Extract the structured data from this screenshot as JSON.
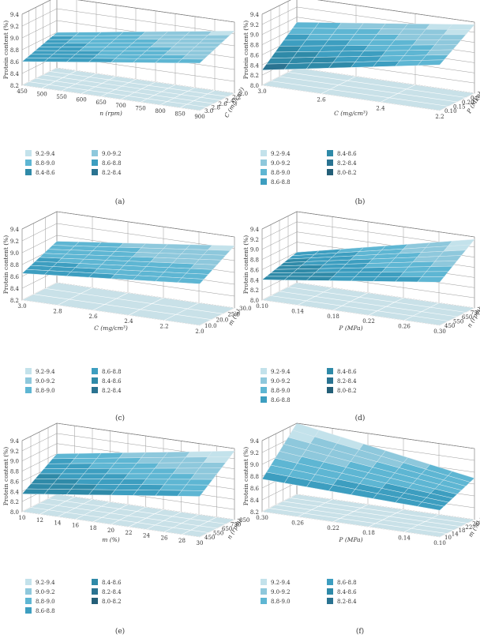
{
  "figure": {
    "colors": {
      "9.2-9.4": "#c3e2eb",
      "9.0-9.2": "#8ec8dc",
      "8.8-9.0": "#5eb6d3",
      "8.6-8.8": "#3d9ec0",
      "8.4-8.6": "#2f8aa8",
      "8.2-8.4": "#2a7391",
      "8.0-8.2": "#245f78"
    },
    "floor_color": "#c9e1e8",
    "wall_color": "#ffffff",
    "grid_color": "#9a9a9a"
  },
  "chart_data": [
    {
      "id": "a",
      "caption": "(a)",
      "type": "surface3d",
      "zlabel": "Protein content (%)",
      "zlim": [
        8.2,
        9.4
      ],
      "zticks": [
        "8.2",
        "8.4",
        "8.6",
        "8.8",
        "9.0",
        "9.2",
        "9.4"
      ],
      "xlabel": "n (rpm)",
      "xticks": [
        "450",
        "500",
        "550",
        "600",
        "650",
        "700",
        "750",
        "800",
        "850",
        "900"
      ],
      "xlim": [
        450,
        900
      ],
      "ylabel": "C (mg/cm³)",
      "yticks": [
        "3.0",
        "2.8",
        "2.6",
        "2.4",
        "2.2",
        "2.0"
      ],
      "ylim": [
        3.0,
        2.0
      ],
      "surface": {
        "z_front_left": 8.6,
        "z_front_right": 9.0,
        "z_back_left": 8.8,
        "z_back_right": 9.25
      },
      "legend": [
        "9.2-9.4",
        "9.0-9.2",
        "8.8-9.0",
        "8.6-8.8",
        "8.4-8.6",
        "8.2-8.4"
      ]
    },
    {
      "id": "b",
      "caption": "(b)",
      "type": "surface3d",
      "zlabel": "Protein content (%)",
      "zlim": [
        8.0,
        9.4
      ],
      "zticks": [
        "8.0",
        "8.2",
        "8.4",
        "8.6",
        "8.8",
        "9.0",
        "9.2",
        "9.4"
      ],
      "xlabel": "C (mg/cm³)",
      "xticks": [
        "3.0",
        "2.6",
        "2.4",
        "2.2"
      ],
      "xlim": [
        3.0,
        2.0
      ],
      "ylabel": "P (MPa)",
      "yticks": [
        "0.10",
        "0.15",
        "0.20",
        "0.25",
        "0.30"
      ],
      "ylim": [
        0.1,
        0.3
      ],
      "surface": {
        "z_front_left": 8.3,
        "z_front_right": 8.9,
        "z_back_left": 8.9,
        "z_back_right": 9.35
      },
      "legend": [
        "9.2-9.4",
        "8.4-8.6",
        "9.0-9.2",
        "8.2-8.4",
        "8.8-9.0",
        "8.0-8.2",
        "8.6-8.8"
      ]
    },
    {
      "id": "c",
      "caption": "(c)",
      "type": "surface3d",
      "zlabel": "Protein content (%)",
      "zlim": [
        8.2,
        9.4
      ],
      "zticks": [
        "8.2",
        "8.4",
        "8.6",
        "8.8",
        "9.0",
        "9.2",
        "9.4"
      ],
      "xlabel": "C (mg/cm³)",
      "xticks": [
        "3.0",
        "2.8",
        "2.6",
        "2.4",
        "2.2",
        "2.0"
      ],
      "xlim": [
        3.0,
        2.0
      ],
      "ylabel": "m (%)",
      "yticks": [
        "10.0",
        "20.0",
        "25.0",
        "30.0"
      ],
      "ylim": [
        10.0,
        30.0
      ],
      "surface": {
        "z_front_left": 8.65,
        "z_front_right": 8.9,
        "z_back_left": 8.9,
        "z_back_right": 9.25
      },
      "legend": [
        "9.2-9.4",
        "8.6-8.8",
        "9.0-9.2",
        "8.4-8.6",
        "8.8-9.0",
        "8.2-8.4"
      ]
    },
    {
      "id": "d",
      "caption": "(d)",
      "type": "surface3d",
      "zlabel": "Protein content (%)",
      "zlim": [
        8.0,
        9.4
      ],
      "zticks": [
        "8.0",
        "8.2",
        "8.4",
        "8.6",
        "8.8",
        "9.0",
        "9.2",
        "9.4"
      ],
      "xlabel": "P (MPa)",
      "xticks": [
        "0.10",
        "0.14",
        "0.18",
        "0.22",
        "0.26",
        "0.30"
      ],
      "xlim": [
        0.1,
        0.3
      ],
      "ylabel": "n (rpm)",
      "yticks": [
        "450",
        "550",
        "650",
        "750",
        "850"
      ],
      "ylim": [
        450,
        850
      ],
      "surface": {
        "z_front_left": 8.4,
        "z_front_right": 8.85,
        "z_back_left": 8.6,
        "z_back_right": 9.35
      },
      "legend": [
        "9.2-9.4",
        "8.4-8.6",
        "9.0-9.2",
        "8.2-8.4",
        "8.8-9.0",
        "8.0-8.2",
        "8.6-8.8"
      ]
    },
    {
      "id": "e",
      "caption": "(e)",
      "type": "surface3d",
      "zlabel": "Protein content (%)",
      "zlim": [
        8.0,
        9.4
      ],
      "zticks": [
        "8.0",
        "8.2",
        "8.4",
        "8.6",
        "8.8",
        "9.0",
        "9.2",
        "9.4"
      ],
      "xlabel": "m (%)",
      "xticks": [
        "10",
        "12",
        "14",
        "16",
        "18",
        "20",
        "22",
        "24",
        "26",
        "28",
        "30"
      ],
      "xlim": [
        10,
        30
      ],
      "ylabel": "n (rpm)",
      "yticks": [
        "450",
        "550",
        "650",
        "750",
        "850"
      ],
      "ylim": [
        450,
        850
      ],
      "surface": {
        "z_front_left": 8.35,
        "z_front_right": 8.8,
        "z_back_left": 8.8,
        "z_back_right": 9.35
      },
      "legend": [
        "9.2-9.4",
        "8.4-8.6",
        "9.0-9.2",
        "8.2-8.4",
        "8.8-9.0",
        "8.0-8.2",
        "8.6-8.8"
      ]
    },
    {
      "id": "f",
      "caption": "(f)",
      "type": "surface3d",
      "zlabel": "Protein content (%)",
      "zlim": [
        8.2,
        9.4
      ],
      "zticks": [
        "8.2",
        "8.4",
        "8.6",
        "8.8",
        "9.0",
        "9.2",
        "9.4"
      ],
      "xlabel": "P (MPa)",
      "xticks": [
        "0.30",
        "0.26",
        "0.22",
        "0.18",
        "0.14",
        "0.10"
      ],
      "xlim": [
        0.3,
        0.1
      ],
      "ylabel": "m (%)",
      "yticks": [
        "10",
        "14",
        "18",
        "22",
        "26",
        "30"
      ],
      "ylim": [
        10,
        30
      ],
      "surface": {
        "z_front_left": 8.75,
        "z_front_right": 8.65,
        "z_back_left": 9.4,
        "z_back_right": 8.9
      },
      "legend": [
        "9.2-9.4",
        "8.6-8.8",
        "9.0-9.2",
        "8.4-8.6",
        "8.8-9.0",
        "8.2-8.4"
      ]
    }
  ]
}
